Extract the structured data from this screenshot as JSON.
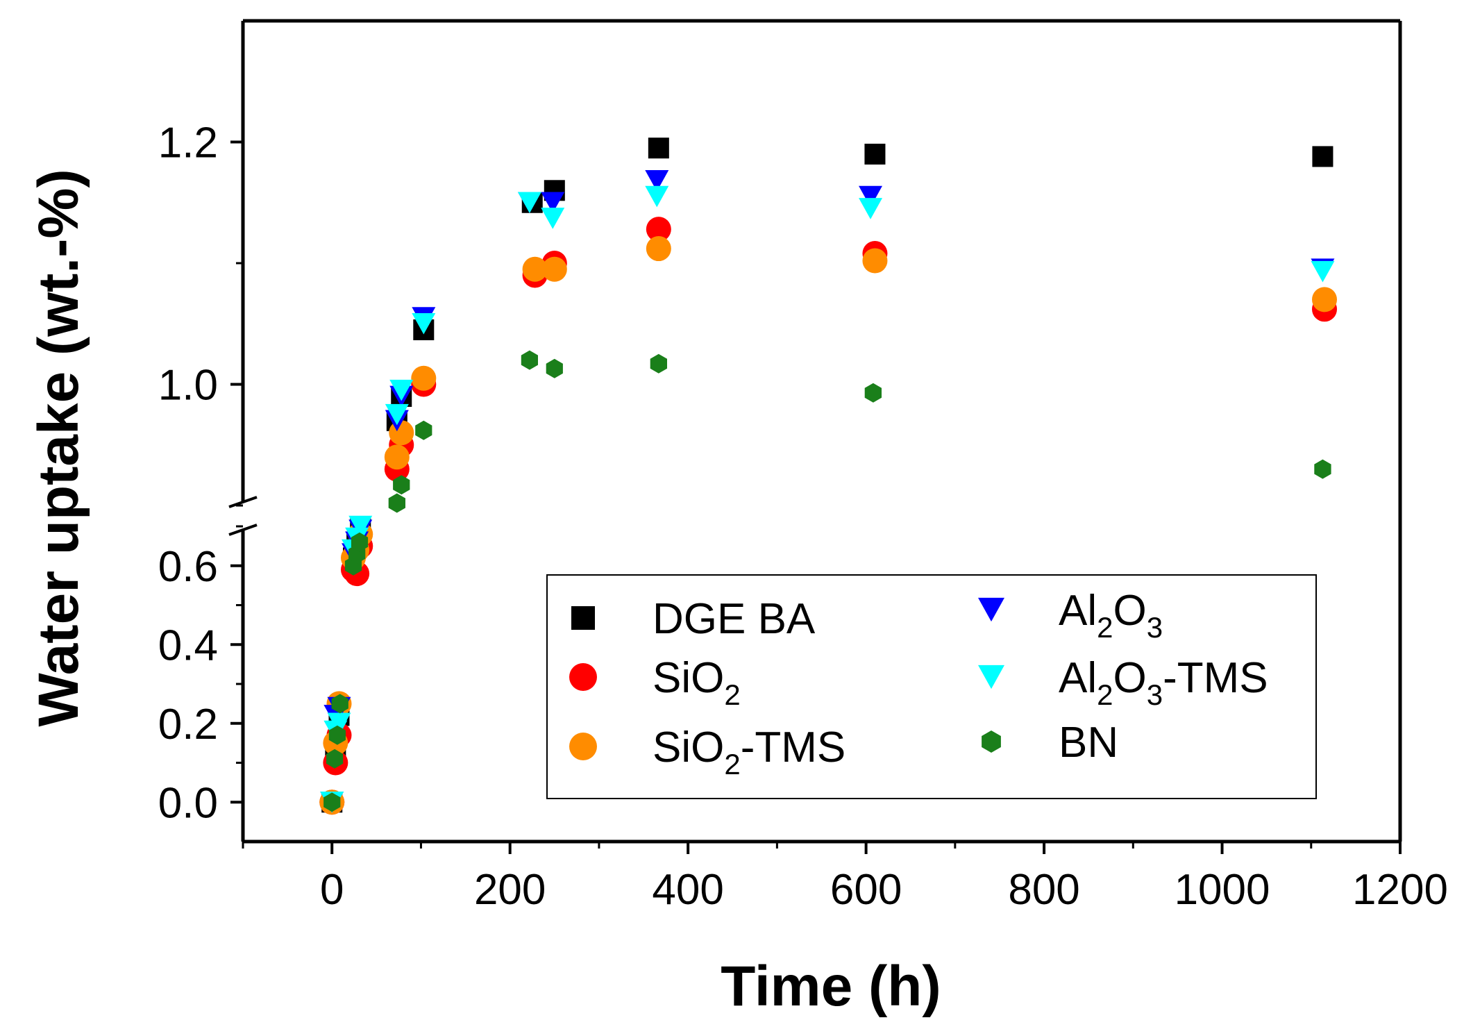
{
  "chart_data": {
    "type": "scatter",
    "xlabel": "Time (h)",
    "ylabel": "Water uptake (wt.-%)",
    "xlim": [
      -100,
      1200
    ],
    "x_ticks": [
      0,
      200,
      400,
      600,
      800,
      1000,
      1200
    ],
    "x_tick_labels": [
      "0",
      "200",
      "400",
      "600",
      "800",
      "1000",
      "1200"
    ],
    "axis_break": {
      "at_y": [
        0.7,
        0.9
      ]
    },
    "y_segments": [
      {
        "range": [
          -0.1,
          0.7
        ],
        "ticks": [
          0.0,
          0.2,
          0.4,
          0.6
        ],
        "tick_labels": [
          "0.0",
          "0.2",
          "0.4",
          "0.6"
        ]
      },
      {
        "range": [
          0.9,
          1.3
        ],
        "ticks": [
          1.0,
          1.2
        ],
        "tick_labels": [
          "1.0",
          "1.2"
        ]
      }
    ],
    "legend_position": "lower-right",
    "series": [
      {
        "name": "DGEBA",
        "name_parts": [
          [
            "DGE BA",
            false
          ]
        ],
        "marker": "square",
        "color": "#000000",
        "points": [
          [
            0,
            0.0
          ],
          [
            4,
            0.13
          ],
          [
            8,
            0.22
          ],
          [
            24,
            0.62
          ],
          [
            28,
            0.66
          ],
          [
            32,
            0.7
          ],
          [
            73,
            0.97
          ],
          [
            78,
            0.99
          ],
          [
            103,
            1.045
          ],
          [
            225,
            1.15
          ],
          [
            250,
            1.16
          ],
          [
            367,
            1.195
          ],
          [
            610,
            1.19
          ],
          [
            1113,
            1.188
          ]
        ]
      },
      {
        "name": "SiO2",
        "name_parts": [
          [
            "SiO",
            false
          ],
          [
            "2",
            true
          ]
        ],
        "marker": "circle",
        "color": "#ff0000",
        "points": [
          [
            0,
            0.0
          ],
          [
            4,
            0.1
          ],
          [
            8,
            0.17
          ],
          [
            24,
            0.59
          ],
          [
            28,
            0.58
          ],
          [
            32,
            0.65
          ],
          [
            73,
            0.93
          ],
          [
            78,
            0.95
          ],
          [
            103,
            1.0
          ],
          [
            228,
            1.09
          ],
          [
            250,
            1.1
          ],
          [
            367,
            1.128
          ],
          [
            610,
            1.108
          ],
          [
            1115,
            1.062
          ]
        ]
      },
      {
        "name": "SiO2-TMS",
        "name_parts": [
          [
            "SiO",
            false
          ],
          [
            "2",
            true
          ],
          [
            "-TMS",
            false
          ]
        ],
        "marker": "circle",
        "color": "#ff8c00",
        "points": [
          [
            0,
            0.0
          ],
          [
            4,
            0.15
          ],
          [
            8,
            0.25
          ],
          [
            24,
            0.62
          ],
          [
            28,
            0.64
          ],
          [
            32,
            0.68
          ],
          [
            73,
            0.94
          ],
          [
            78,
            0.96
          ],
          [
            103,
            1.005
          ],
          [
            228,
            1.095
          ],
          [
            250,
            1.095
          ],
          [
            367,
            1.112
          ],
          [
            610,
            1.102
          ],
          [
            1115,
            1.07
          ]
        ]
      },
      {
        "name": "Al2O3",
        "name_parts": [
          [
            "Al",
            false
          ],
          [
            "2",
            true
          ],
          [
            "O",
            false
          ],
          [
            "3",
            true
          ]
        ],
        "marker": "triangle-down",
        "color": "#0000ff",
        "points": [
          [
            0,
            0.0
          ],
          [
            4,
            0.22
          ],
          [
            8,
            0.24
          ],
          [
            24,
            0.63
          ],
          [
            28,
            0.66
          ],
          [
            32,
            0.69
          ],
          [
            73,
            0.97
          ],
          [
            78,
            0.99
          ],
          [
            103,
            1.055
          ],
          [
            222,
            1.15
          ],
          [
            248,
            1.15
          ],
          [
            365,
            1.168
          ],
          [
            605,
            1.155
          ],
          [
            1113,
            1.095
          ]
        ]
      },
      {
        "name": "Al2O3-TMS",
        "name_parts": [
          [
            "Al",
            false
          ],
          [
            "2",
            true
          ],
          [
            "O",
            false
          ],
          [
            "3",
            true
          ],
          [
            "-TMS",
            false
          ]
        ],
        "marker": "triangle-down",
        "color": "#00ffff",
        "points": [
          [
            0,
            0.0
          ],
          [
            4,
            0.18
          ],
          [
            8,
            0.2
          ],
          [
            24,
            0.64
          ],
          [
            28,
            0.67
          ],
          [
            32,
            0.7
          ],
          [
            73,
            0.975
          ],
          [
            78,
            0.995
          ],
          [
            103,
            1.05
          ],
          [
            222,
            1.15
          ],
          [
            248,
            1.137
          ],
          [
            365,
            1.155
          ],
          [
            605,
            1.145
          ],
          [
            1113,
            1.093
          ]
        ]
      },
      {
        "name": "BN",
        "name_parts": [
          [
            "BN",
            false
          ]
        ],
        "marker": "hexagon",
        "color": "#1a7f1a",
        "points": [
          [
            0,
            0.0
          ],
          [
            3,
            0.11
          ],
          [
            6,
            0.17
          ],
          [
            9,
            0.25
          ],
          [
            24,
            0.6
          ],
          [
            28,
            0.63
          ],
          [
            31,
            0.66
          ],
          [
            73,
            0.902
          ],
          [
            78,
            0.917
          ],
          [
            103,
            0.962
          ],
          [
            222,
            1.02
          ],
          [
            250,
            1.013
          ],
          [
            367,
            1.017
          ],
          [
            608,
            0.993
          ],
          [
            1113,
            0.93
          ]
        ]
      }
    ]
  }
}
